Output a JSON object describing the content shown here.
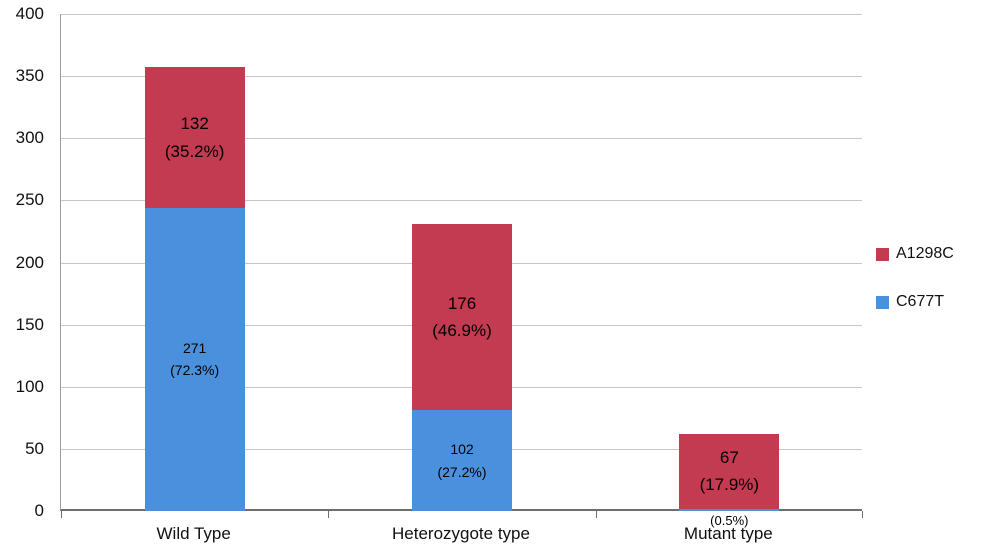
{
  "chart_data": {
    "type": "stacked-bar",
    "categories": [
      "Wild Type",
      "Heterozygote type",
      "Mutant type"
    ],
    "series": [
      {
        "name": "C677T",
        "color": "#4A90DC",
        "values": [
          271,
          102,
          2
        ],
        "labels": [
          {
            "value": "271",
            "pct": "(72.3%)",
            "mode": "inside"
          },
          {
            "value": "102",
            "pct": "(27.2%)",
            "mode": "inside"
          },
          {
            "value": "2",
            "pct": "(0.5%)",
            "mode": "below"
          }
        ],
        "render_heights": [
          244,
          81,
          2
        ]
      },
      {
        "name": "A1298C",
        "color": "#C23B50",
        "values": [
          132,
          176,
          67
        ],
        "labels": [
          {
            "value": "132",
            "pct": "(35.2%)",
            "mode": "inside"
          },
          {
            "value": "176",
            "pct": "(46.9%)",
            "mode": "inside"
          },
          {
            "value": "67",
            "pct": "(17.9%)",
            "mode": "inside"
          }
        ],
        "render_heights": [
          113,
          150,
          60
        ]
      }
    ],
    "ylim": [
      0,
      400
    ],
    "yticks": [
      "0",
      "50",
      "100",
      "150",
      "200",
      "250",
      "300",
      "350",
      "400"
    ],
    "grid": true,
    "legend_position": "right",
    "legend": [
      {
        "label": "A1298C",
        "color": "#C23B50"
      },
      {
        "label": "C677T",
        "color": "#4A90DC"
      }
    ]
  }
}
